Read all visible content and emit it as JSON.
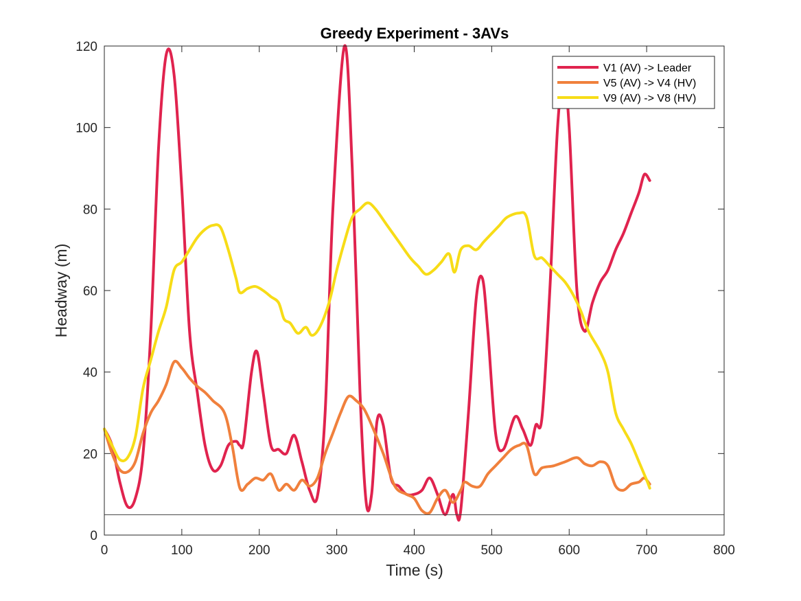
{
  "chart_data": {
    "type": "line",
    "title": "Greedy Experiment - 3AVs",
    "xlabel": "Time (s)",
    "ylabel": "Headway (m)",
    "xlim": [
      0,
      800
    ],
    "ylim": [
      0,
      120
    ],
    "xticks": [
      0,
      100,
      200,
      300,
      400,
      500,
      600,
      700,
      800
    ],
    "yticks": [
      0,
      20,
      40,
      60,
      80,
      100,
      120
    ],
    "xtick_labels": [
      "0",
      "100",
      "200",
      "300",
      "400",
      "500",
      "600",
      "700",
      "800"
    ],
    "ytick_labels": [
      "0",
      "20",
      "40",
      "60",
      "80",
      "100",
      "120"
    ],
    "grid": false,
    "legend_position": "top-right",
    "reference_line": {
      "y": 5,
      "color": "#404040"
    },
    "series": [
      {
        "name": "V1 (AV) -> Leader",
        "color": "#e0234e",
        "points": [
          [
            0,
            26
          ],
          [
            10,
            22
          ],
          [
            20,
            13
          ],
          [
            30,
            7
          ],
          [
            40,
            9
          ],
          [
            50,
            20
          ],
          [
            60,
            50
          ],
          [
            70,
            95
          ],
          [
            80,
            118
          ],
          [
            90,
            113
          ],
          [
            100,
            85
          ],
          [
            110,
            50
          ],
          [
            120,
            35
          ],
          [
            130,
            22
          ],
          [
            140,
            16
          ],
          [
            150,
            17
          ],
          [
            160,
            22
          ],
          [
            170,
            23
          ],
          [
            175,
            22
          ],
          [
            180,
            23
          ],
          [
            190,
            40
          ],
          [
            197,
            45
          ],
          [
            205,
            35
          ],
          [
            215,
            22
          ],
          [
            225,
            21
          ],
          [
            235,
            20
          ],
          [
            245,
            24.5
          ],
          [
            255,
            18
          ],
          [
            265,
            11
          ],
          [
            275,
            9.5
          ],
          [
            285,
            30
          ],
          [
            295,
            80
          ],
          [
            310,
            120
          ],
          [
            320,
            90
          ],
          [
            330,
            35
          ],
          [
            338,
            8
          ],
          [
            345,
            10
          ],
          [
            352,
            28
          ],
          [
            360,
            27
          ],
          [
            370,
            14
          ],
          [
            380,
            12
          ],
          [
            390,
            10
          ],
          [
            400,
            10
          ],
          [
            410,
            11
          ],
          [
            420,
            14
          ],
          [
            430,
            10
          ],
          [
            440,
            5
          ],
          [
            450,
            10
          ],
          [
            455,
            5
          ],
          [
            460,
            6
          ],
          [
            470,
            30
          ],
          [
            480,
            58
          ],
          [
            488,
            63
          ],
          [
            495,
            50
          ],
          [
            505,
            25
          ],
          [
            515,
            21
          ],
          [
            530,
            29
          ],
          [
            540,
            26
          ],
          [
            550,
            22
          ],
          [
            557,
            27
          ],
          [
            565,
            29
          ],
          [
            575,
            60
          ],
          [
            585,
            100
          ],
          [
            593,
            112
          ],
          [
            600,
            100
          ],
          [
            610,
            60
          ],
          [
            620,
            50
          ],
          [
            630,
            57
          ],
          [
            640,
            62
          ],
          [
            650,
            65
          ],
          [
            660,
            70
          ],
          [
            670,
            74
          ],
          [
            680,
            79
          ],
          [
            690,
            84
          ],
          [
            697,
            88.5
          ],
          [
            704,
            87
          ]
        ]
      },
      {
        "name": "V5 (AV) -> V4 (HV)",
        "color": "#f0803c",
        "points": [
          [
            0,
            26
          ],
          [
            10,
            20
          ],
          [
            20,
            16
          ],
          [
            30,
            15.5
          ],
          [
            40,
            18
          ],
          [
            50,
            25
          ],
          [
            60,
            30
          ],
          [
            70,
            33
          ],
          [
            80,
            37
          ],
          [
            90,
            42.5
          ],
          [
            100,
            41
          ],
          [
            110,
            38.5
          ],
          [
            120,
            36.5
          ],
          [
            130,
            35
          ],
          [
            140,
            33
          ],
          [
            155,
            30
          ],
          [
            165,
            22
          ],
          [
            175,
            11.5
          ],
          [
            185,
            12.5
          ],
          [
            195,
            14
          ],
          [
            205,
            13.5
          ],
          [
            215,
            15
          ],
          [
            225,
            11
          ],
          [
            235,
            12.5
          ],
          [
            245,
            11
          ],
          [
            255,
            13.5
          ],
          [
            265,
            12
          ],
          [
            275,
            14
          ],
          [
            285,
            20
          ],
          [
            295,
            25
          ],
          [
            305,
            30
          ],
          [
            315,
            34
          ],
          [
            325,
            33
          ],
          [
            335,
            31
          ],
          [
            345,
            27
          ],
          [
            360,
            20
          ],
          [
            375,
            12
          ],
          [
            390,
            10
          ],
          [
            400,
            9
          ],
          [
            410,
            6
          ],
          [
            420,
            5.5
          ],
          [
            430,
            9
          ],
          [
            440,
            11
          ],
          [
            450,
            8
          ],
          [
            460,
            11
          ],
          [
            465,
            13
          ],
          [
            475,
            12
          ],
          [
            485,
            12
          ],
          [
            495,
            15
          ],
          [
            505,
            17
          ],
          [
            515,
            19
          ],
          [
            525,
            21
          ],
          [
            535,
            22
          ],
          [
            545,
            22
          ],
          [
            555,
            15
          ],
          [
            565,
            16.5
          ],
          [
            580,
            17
          ],
          [
            595,
            18
          ],
          [
            610,
            19
          ],
          [
            620,
            17.5
          ],
          [
            630,
            17
          ],
          [
            640,
            18
          ],
          [
            650,
            17
          ],
          [
            660,
            12
          ],
          [
            670,
            11
          ],
          [
            680,
            12.5
          ],
          [
            690,
            13
          ],
          [
            697,
            14
          ],
          [
            704,
            12.5
          ]
        ]
      },
      {
        "name": "V9 (AV) -> V8 (HV)",
        "color": "#f7dc17",
        "points": [
          [
            0,
            26
          ],
          [
            10,
            22
          ],
          [
            20,
            18.5
          ],
          [
            30,
            19
          ],
          [
            40,
            24
          ],
          [
            50,
            36
          ],
          [
            60,
            43
          ],
          [
            70,
            50
          ],
          [
            80,
            56
          ],
          [
            90,
            65
          ],
          [
            100,
            67
          ],
          [
            110,
            70
          ],
          [
            120,
            73
          ],
          [
            130,
            75
          ],
          [
            140,
            76
          ],
          [
            150,
            75.5
          ],
          [
            160,
            70
          ],
          [
            170,
            63
          ],
          [
            175,
            59.5
          ],
          [
            185,
            60.5
          ],
          [
            195,
            61
          ],
          [
            205,
            60
          ],
          [
            215,
            58.5
          ],
          [
            225,
            57
          ],
          [
            232,
            53
          ],
          [
            240,
            52
          ],
          [
            250,
            49.5
          ],
          [
            260,
            51
          ],
          [
            268,
            49
          ],
          [
            278,
            51
          ],
          [
            290,
            57
          ],
          [
            300,
            65
          ],
          [
            310,
            72
          ],
          [
            320,
            78
          ],
          [
            330,
            80
          ],
          [
            340,
            81.5
          ],
          [
            350,
            80
          ],
          [
            365,
            76
          ],
          [
            380,
            72
          ],
          [
            395,
            68
          ],
          [
            405,
            66
          ],
          [
            415,
            64
          ],
          [
            425,
            65
          ],
          [
            435,
            67
          ],
          [
            445,
            69
          ],
          [
            452,
            64.5
          ],
          [
            460,
            70
          ],
          [
            470,
            71
          ],
          [
            480,
            70
          ],
          [
            490,
            72
          ],
          [
            500,
            74
          ],
          [
            510,
            76
          ],
          [
            520,
            78
          ],
          [
            535,
            79
          ],
          [
            545,
            78
          ],
          [
            555,
            68.5
          ],
          [
            565,
            68
          ],
          [
            575,
            66
          ],
          [
            585,
            64
          ],
          [
            595,
            62
          ],
          [
            605,
            59
          ],
          [
            615,
            55
          ],
          [
            625,
            50
          ],
          [
            640,
            45
          ],
          [
            650,
            40
          ],
          [
            660,
            30
          ],
          [
            670,
            26
          ],
          [
            680,
            22.5
          ],
          [
            690,
            18
          ],
          [
            700,
            13.5
          ],
          [
            704,
            11.5
          ]
        ]
      }
    ]
  }
}
